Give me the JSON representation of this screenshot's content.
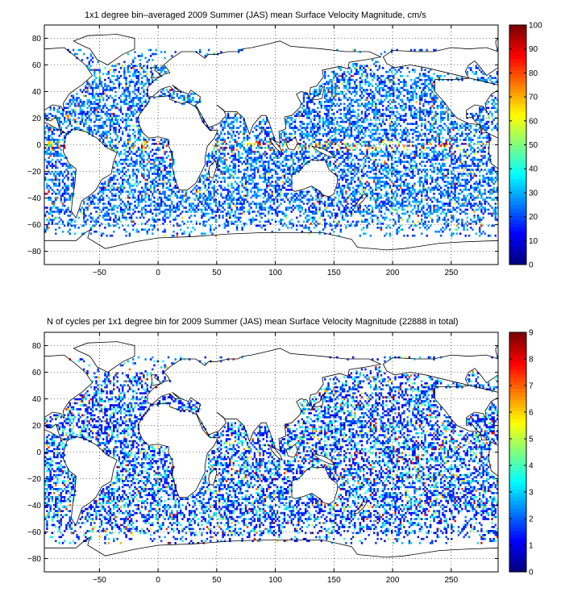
{
  "chart_data": [
    {
      "type": "heatmap",
      "title": "1x1 degree bin–averaged 2009 Summer (JAS) mean Surface Velocity Magnitude, cm/s",
      "xlim": [
        -97,
        290
      ],
      "ylim": [
        -90,
        90
      ],
      "xticks": [
        -50,
        0,
        50,
        100,
        150,
        200,
        250
      ],
      "yticks": [
        -80,
        -60,
        -40,
        -20,
        0,
        20,
        40,
        60,
        80
      ],
      "grid": true,
      "colorbar": {
        "range": [
          0,
          100
        ],
        "ticks": [
          0,
          10,
          20,
          30,
          40,
          50,
          60,
          70,
          80,
          90,
          100
        ],
        "colormap": "jet",
        "location": "right"
      },
      "background": "coastline outline of world continents",
      "value_notes": "Speeds mostly 10-30 cm/s; high values (60-100) along equatorial currents, Gulf Stream, Kuroshio, Agulhas, Brazil-Malvinas"
    },
    {
      "type": "heatmap",
      "title": "N of cycles per 1x1 degree bin for 2009 Summer (JAS) mean Surface Velocity Magnitude (22888 in total)",
      "xlim": [
        -97,
        290
      ],
      "ylim": [
        -90,
        90
      ],
      "xticks": [
        -50,
        0,
        50,
        100,
        150,
        200,
        250
      ],
      "yticks": [
        -80,
        -60,
        -40,
        -20,
        0,
        20,
        40,
        60,
        80
      ],
      "grid": true,
      "colorbar": {
        "range": [
          0,
          9
        ],
        "ticks": [
          0,
          1,
          2,
          3,
          4,
          5,
          6,
          7,
          8,
          9
        ],
        "colormap": "jet",
        "location": "right"
      },
      "background": "coastline outline of world continents",
      "value_notes": "Most bins contain 1-2 cycles; scattered higher counts up to 9"
    }
  ],
  "colors": {
    "jet_low": "#00007f",
    "jet_mid": "#7fff7f",
    "jet_high": "#7f0000",
    "axis": "#000000",
    "background": "#ffffff"
  }
}
